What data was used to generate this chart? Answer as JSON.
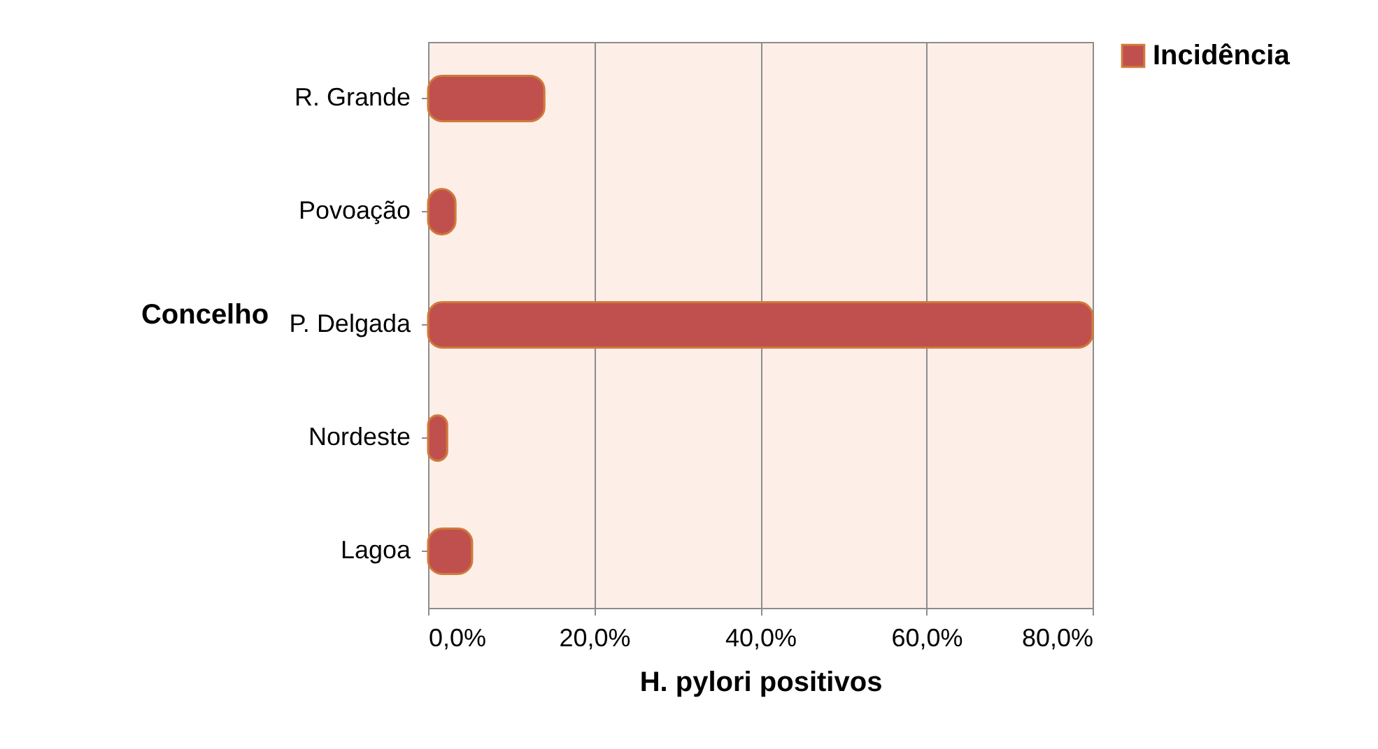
{
  "chart_data": {
    "type": "bar",
    "orientation": "horizontal",
    "xlabel": "H. pylori positivos",
    "ylabel": "Concelho",
    "categories": [
      "R. Grande",
      "Povoação",
      "P. Delgada",
      "Nordeste",
      "Lagoa"
    ],
    "series": [
      {
        "name": "Incidência",
        "color": "#c0504d",
        "values": [
          14,
          3.3,
          80,
          2.3,
          5.3
        ]
      }
    ],
    "xlim": [
      0,
      80
    ],
    "xticks": [
      {
        "value": 0,
        "label": "0,0%"
      },
      {
        "value": 20,
        "label": "20,0%"
      },
      {
        "value": 40,
        "label": "40,0%"
      },
      {
        "value": 60,
        "label": "60,0%"
      },
      {
        "value": 80,
        "label": "80,0%"
      }
    ],
    "grid": "x",
    "legend": "right"
  }
}
